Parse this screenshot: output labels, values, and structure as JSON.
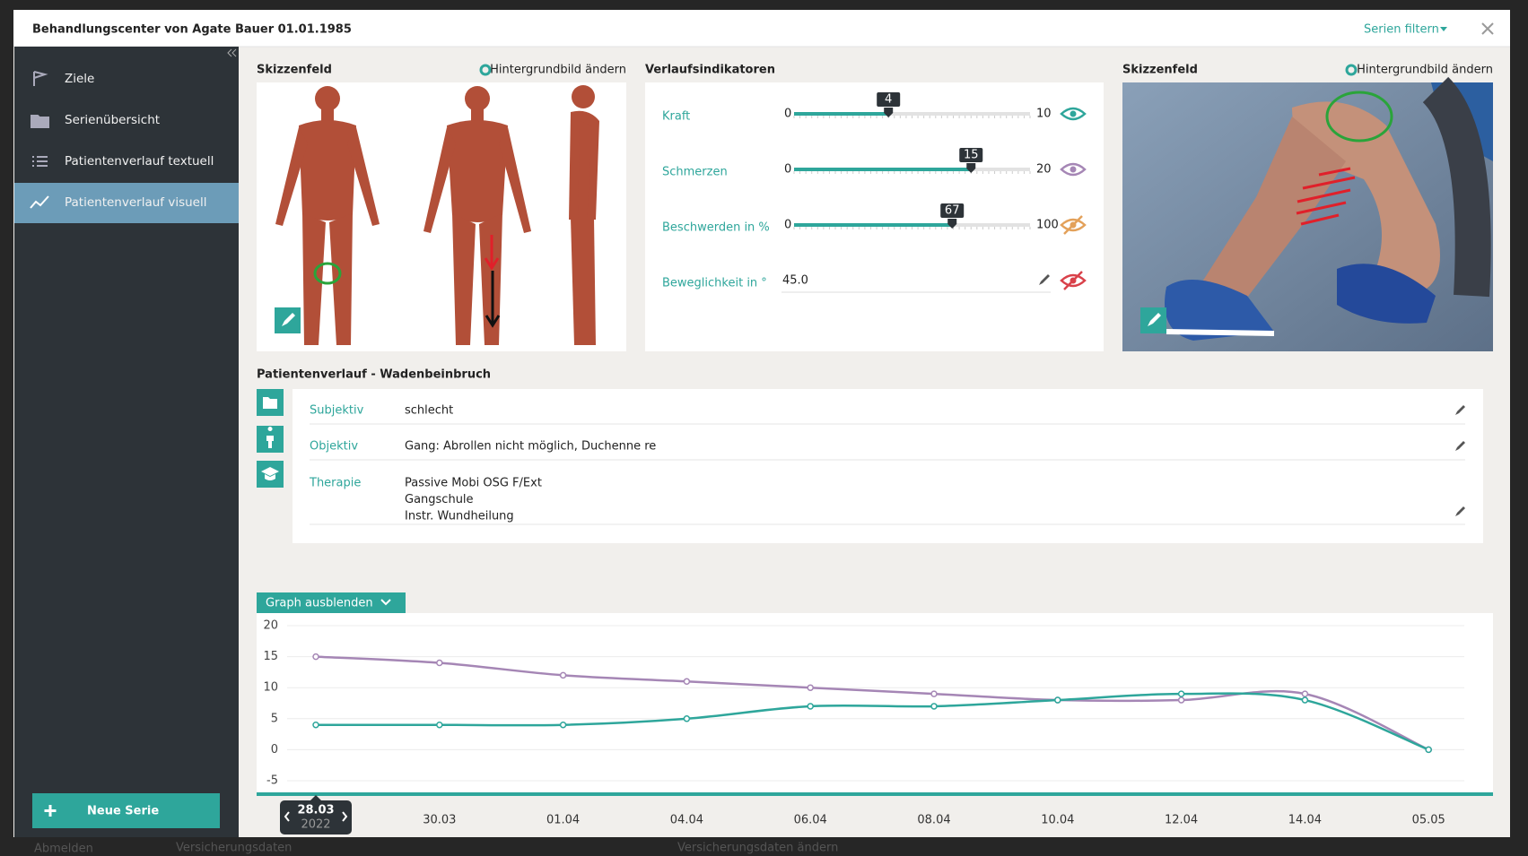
{
  "header": {
    "title": "Behandlungscenter von Agate Bauer 01.01.1985",
    "filter": "Serien filtern"
  },
  "sidebar": {
    "items": [
      "Ziele",
      "Serienübersicht",
      "Patientenverlauf textuell",
      "Patientenverlauf visuell"
    ],
    "active": 3,
    "new_series": "Neue Serie"
  },
  "sketch_left": {
    "title": "Skizzenfeld",
    "action": "Hintergrundbild ändern"
  },
  "indicators": {
    "title": "Verlaufsindikatoren",
    "sliders": [
      {
        "label": "Kraft",
        "min": 0,
        "max": 10,
        "value": 4,
        "eye_color": "#2ea69b",
        "visible": true
      },
      {
        "label": "Schmerzen",
        "min": 0,
        "max": 20,
        "value": 15,
        "eye_color": "#a586b5",
        "visible": true
      },
      {
        "label": "Beschwerden in %",
        "min": 0,
        "max": 100,
        "value": 67,
        "eye_color": "#e3a15a",
        "visible": false
      }
    ],
    "input": {
      "label": "Beweglichkeit in °",
      "value": "45.0",
      "eye_color": "#d9414a",
      "visible": false
    }
  },
  "sketch_right": {
    "title": "Skizzenfeld",
    "action": "Hintergrundbild ändern"
  },
  "progress": {
    "title": "Patientenverlauf - Wadenbeinbruch",
    "rows": [
      {
        "label": "Subjektiv",
        "lines": [
          "schlecht"
        ]
      },
      {
        "label": "Objektiv",
        "lines": [
          "Gang: Abrollen nicht möglich, Duchenne re"
        ]
      },
      {
        "label": "Therapie",
        "lines": [
          "Passive Mobi OSG F/Ext",
          "Gangschule",
          "Instr. Wundheilung"
        ]
      }
    ]
  },
  "graph": {
    "toggle": "Graph ausblenden",
    "type": "line",
    "x": [
      "28.03",
      "30.03",
      "01.04",
      "04.04",
      "06.04",
      "08.04",
      "10.04",
      "12.04",
      "14.04",
      "05.05"
    ],
    "selected": 0,
    "selected_year": "2022",
    "ylim": [
      -5,
      20
    ],
    "yticks": [
      -5,
      0,
      5,
      10,
      15,
      20
    ],
    "grid": true,
    "series": [
      {
        "color": "#a586b5",
        "values": [
          15,
          14,
          12,
          11,
          10,
          9,
          8,
          8,
          9,
          0
        ]
      },
      {
        "color": "#2ea69b",
        "values": [
          4,
          4,
          4,
          5,
          7,
          7,
          8,
          9,
          8,
          0
        ]
      }
    ]
  },
  "background": {
    "texts": [
      "Abmelden",
      "Versicherungsdaten",
      "Versicherungsdaten ändern"
    ]
  }
}
